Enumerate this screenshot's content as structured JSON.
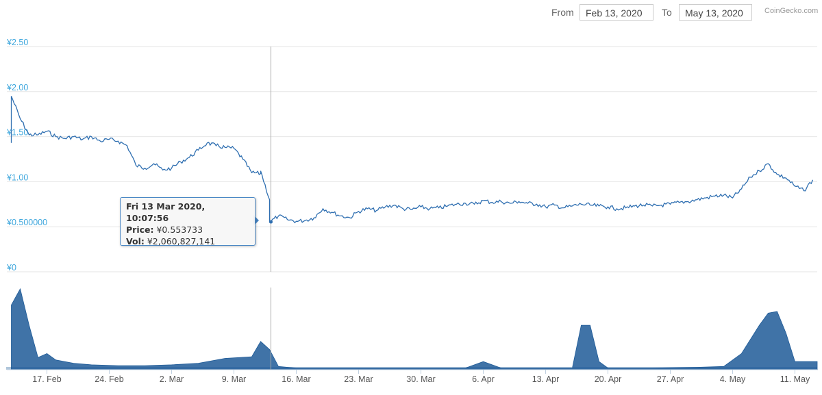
{
  "range_selector": {
    "from_label": "From",
    "from_value": "Feb 13, 2020",
    "to_label": "To",
    "to_value": "May 13, 2020"
  },
  "credit": "CoinGecko.com",
  "tooltip": {
    "date": "Fri 13 Mar 2020, 10:07:56",
    "price_label": "Price:",
    "price_value": "¥0.553733",
    "vol_label": "Vol:",
    "vol_value": "¥2,060,827,141"
  },
  "colors": {
    "line": "#2f6fb1",
    "volume": "#1f5b98",
    "axis_label": "#3fa7dd",
    "grid": "#e6e6e6"
  },
  "chart_data": {
    "type": "line",
    "price_axis": {
      "ticks": [
        "¥0",
        "¥0.500000",
        "¥1.00",
        "¥1.50",
        "¥2.00",
        "¥2.50"
      ],
      "tick_values": [
        0,
        0.5,
        1.0,
        1.5,
        2.0,
        2.5
      ],
      "ylim": [
        0,
        2.5
      ]
    },
    "x_axis": {
      "start": "2020-02-13",
      "end": "2020-05-13",
      "ticks": [
        "17. Feb",
        "24. Feb",
        "2. Mar",
        "9. Mar",
        "16. Mar",
        "23. Mar",
        "30. Mar",
        "6. Apr",
        "13. Apr",
        "20. Apr",
        "27. Apr",
        "4. May",
        "11. May"
      ],
      "tick_dates": [
        "2020-02-17",
        "2020-02-24",
        "2020-03-02",
        "2020-03-09",
        "2020-03-16",
        "2020-03-23",
        "2020-03-30",
        "2020-04-06",
        "2020-04-13",
        "2020-04-20",
        "2020-04-27",
        "2020-05-04",
        "2020-05-11"
      ]
    },
    "crosshair_date": "2020-03-13",
    "series": [
      {
        "x": [
          "2020-02-13",
          "2020-02-13",
          "2020-02-14",
          "2020-02-15",
          "2020-02-16",
          "2020-02-17",
          "2020-02-18",
          "2020-02-19",
          "2020-02-20",
          "2020-02-21",
          "2020-02-22",
          "2020-02-23",
          "2020-02-24",
          "2020-02-25",
          "2020-02-26",
          "2020-02-27",
          "2020-02-28",
          "2020-02-29",
          "2020-03-01",
          "2020-03-02",
          "2020-03-03",
          "2020-03-04",
          "2020-03-05",
          "2020-03-06",
          "2020-03-07",
          "2020-03-08",
          "2020-03-09",
          "2020-03-10",
          "2020-03-11",
          "2020-03-12",
          "2020-03-12",
          "2020-03-13",
          "2020-03-13",
          "2020-03-14",
          "2020-03-15",
          "2020-03-16",
          "2020-03-17",
          "2020-03-18",
          "2020-03-19",
          "2020-03-20",
          "2020-03-21",
          "2020-03-22",
          "2020-03-23",
          "2020-03-24",
          "2020-03-25",
          "2020-03-26",
          "2020-03-27",
          "2020-03-28",
          "2020-03-29",
          "2020-03-30",
          "2020-03-31",
          "2020-04-01",
          "2020-04-02",
          "2020-04-03",
          "2020-04-04",
          "2020-04-05",
          "2020-04-06",
          "2020-04-07",
          "2020-04-08",
          "2020-04-09",
          "2020-04-10",
          "2020-04-11",
          "2020-04-12",
          "2020-04-13",
          "2020-04-14",
          "2020-04-15",
          "2020-04-16",
          "2020-04-17",
          "2020-04-18",
          "2020-04-19",
          "2020-04-20",
          "2020-04-21",
          "2020-04-22",
          "2020-04-23",
          "2020-04-24",
          "2020-04-25",
          "2020-04-26",
          "2020-04-27",
          "2020-04-28",
          "2020-04-29",
          "2020-04-30",
          "2020-05-01",
          "2020-05-02",
          "2020-05-03",
          "2020-05-04",
          "2020-05-05",
          "2020-05-06",
          "2020-05-07",
          "2020-05-08",
          "2020-05-09",
          "2020-05-10",
          "2020-05-11",
          "2020-05-12",
          "2020-05-13"
        ],
        "values": [
          1.43,
          1.95,
          1.7,
          1.52,
          1.52,
          1.56,
          1.5,
          1.48,
          1.5,
          1.47,
          1.5,
          1.45,
          1.47,
          1.45,
          1.4,
          1.18,
          1.15,
          1.2,
          1.13,
          1.15,
          1.22,
          1.27,
          1.35,
          1.43,
          1.4,
          1.38,
          1.37,
          1.25,
          1.1,
          1.09,
          1.12,
          0.8,
          0.55,
          0.62,
          0.58,
          0.56,
          0.57,
          0.6,
          0.7,
          0.66,
          0.62,
          0.6,
          0.67,
          0.7,
          0.68,
          0.72,
          0.74,
          0.7,
          0.69,
          0.72,
          0.7,
          0.71,
          0.73,
          0.75,
          0.76,
          0.75,
          0.79,
          0.77,
          0.78,
          0.76,
          0.78,
          0.76,
          0.75,
          0.72,
          0.74,
          0.71,
          0.73,
          0.75,
          0.74,
          0.73,
          0.72,
          0.7,
          0.71,
          0.73,
          0.74,
          0.73,
          0.74,
          0.75,
          0.77,
          0.78,
          0.8,
          0.82,
          0.84,
          0.85,
          0.82,
          0.92,
          1.05,
          1.12,
          1.2,
          1.08,
          1.04,
          0.95,
          0.9,
          1.02
        ]
      }
    ],
    "volume": {
      "x": [
        "2020-02-13",
        "2020-02-14",
        "2020-02-15",
        "2020-02-16",
        "2020-02-17",
        "2020-02-18",
        "2020-02-20",
        "2020-02-22",
        "2020-02-25",
        "2020-02-28",
        "2020-03-02",
        "2020-03-05",
        "2020-03-08",
        "2020-03-11",
        "2020-03-12",
        "2020-03-13",
        "2020-03-14",
        "2020-03-16",
        "2020-03-20",
        "2020-03-25",
        "2020-03-30",
        "2020-04-04",
        "2020-04-06",
        "2020-04-07",
        "2020-04-08",
        "2020-04-12",
        "2020-04-16",
        "2020-04-17",
        "2020-04-18",
        "2020-04-19",
        "2020-04-20",
        "2020-04-25",
        "2020-04-30",
        "2020-05-03",
        "2020-05-05",
        "2020-05-07",
        "2020-05-08",
        "2020-05-09",
        "2020-05-10",
        "2020-05-11",
        "2020-05-12",
        "2020-05-13"
      ],
      "values": [
        0.8,
        1.0,
        0.55,
        0.15,
        0.2,
        0.12,
        0.08,
        0.06,
        0.05,
        0.05,
        0.06,
        0.08,
        0.14,
        0.16,
        0.35,
        0.25,
        0.04,
        0.02,
        0.02,
        0.02,
        0.02,
        0.02,
        0.1,
        0.06,
        0.02,
        0.02,
        0.02,
        0.55,
        0.55,
        0.1,
        0.02,
        0.02,
        0.03,
        0.04,
        0.2,
        0.55,
        0.7,
        0.72,
        0.45,
        0.1,
        0.1,
        0.1
      ]
    }
  }
}
